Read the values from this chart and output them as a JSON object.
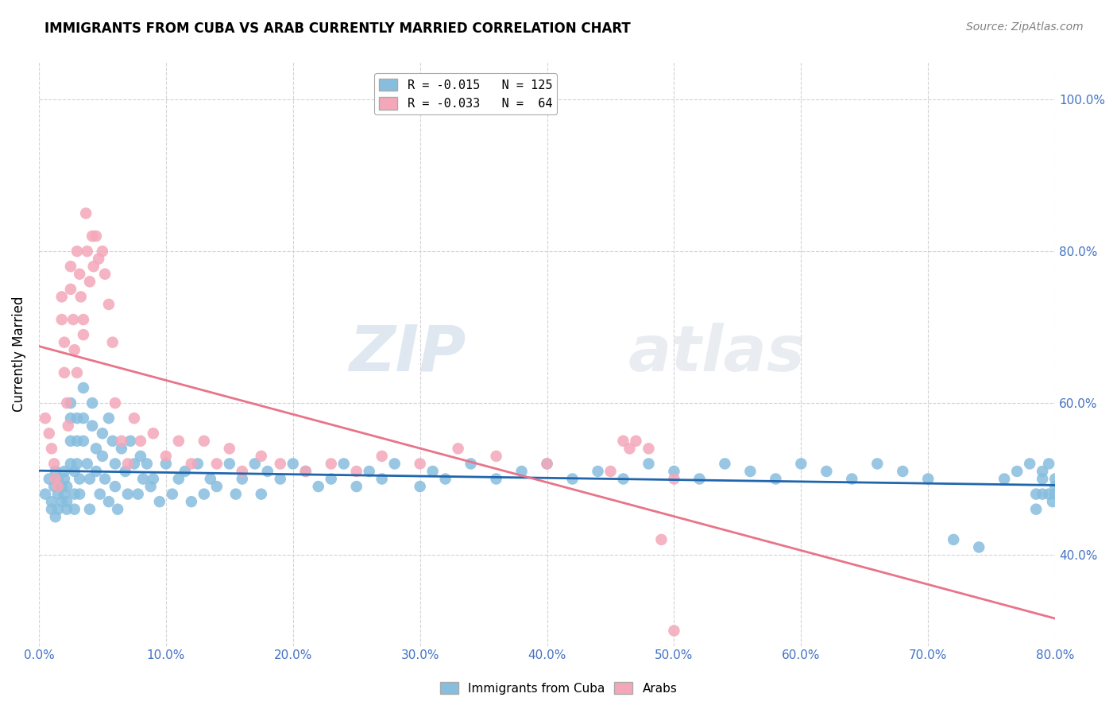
{
  "title": "IMMIGRANTS FROM CUBA VS ARAB CURRENTLY MARRIED CORRELATION CHART",
  "source": "Source: ZipAtlas.com",
  "ylabel": "Currently Married",
  "xlim": [
    0.0,
    0.8
  ],
  "ylim": [
    0.28,
    1.05
  ],
  "legend_entry1": "R = -0.015   N = 125",
  "legend_entry2": "R = -0.033   N =  64",
  "color_cuba": "#87BEDE",
  "color_arab": "#F4A7B9",
  "line_color_cuba": "#2166AC",
  "line_color_arab": "#E8748A",
  "cuba_x": [
    0.005,
    0.008,
    0.01,
    0.01,
    0.012,
    0.013,
    0.013,
    0.015,
    0.015,
    0.015,
    0.018,
    0.018,
    0.02,
    0.02,
    0.02,
    0.022,
    0.022,
    0.022,
    0.025,
    0.025,
    0.025,
    0.025,
    0.028,
    0.028,
    0.028,
    0.03,
    0.03,
    0.03,
    0.032,
    0.032,
    0.035,
    0.035,
    0.035,
    0.038,
    0.04,
    0.04,
    0.042,
    0.042,
    0.045,
    0.045,
    0.048,
    0.05,
    0.05,
    0.052,
    0.055,
    0.055,
    0.058,
    0.06,
    0.06,
    0.062,
    0.065,
    0.068,
    0.07,
    0.072,
    0.075,
    0.078,
    0.08,
    0.082,
    0.085,
    0.088,
    0.09,
    0.095,
    0.1,
    0.105,
    0.11,
    0.115,
    0.12,
    0.125,
    0.13,
    0.135,
    0.14,
    0.15,
    0.155,
    0.16,
    0.17,
    0.175,
    0.18,
    0.19,
    0.2,
    0.21,
    0.22,
    0.23,
    0.24,
    0.25,
    0.26,
    0.27,
    0.28,
    0.3,
    0.31,
    0.32,
    0.34,
    0.36,
    0.38,
    0.4,
    0.42,
    0.44,
    0.46,
    0.48,
    0.5,
    0.52,
    0.54,
    0.56,
    0.58,
    0.6,
    0.62,
    0.64,
    0.66,
    0.68,
    0.7,
    0.72,
    0.74,
    0.76,
    0.77,
    0.78,
    0.785,
    0.785,
    0.79,
    0.79,
    0.79,
    0.795,
    0.795,
    0.798,
    0.8,
    0.8,
    0.8
  ],
  "cuba_y": [
    0.48,
    0.5,
    0.46,
    0.47,
    0.49,
    0.45,
    0.51,
    0.48,
    0.5,
    0.46,
    0.47,
    0.49,
    0.51,
    0.48,
    0.5,
    0.46,
    0.47,
    0.49,
    0.6,
    0.58,
    0.55,
    0.52,
    0.51,
    0.48,
    0.46,
    0.58,
    0.55,
    0.52,
    0.5,
    0.48,
    0.62,
    0.58,
    0.55,
    0.52,
    0.5,
    0.46,
    0.6,
    0.57,
    0.54,
    0.51,
    0.48,
    0.56,
    0.53,
    0.5,
    0.47,
    0.58,
    0.55,
    0.52,
    0.49,
    0.46,
    0.54,
    0.51,
    0.48,
    0.55,
    0.52,
    0.48,
    0.53,
    0.5,
    0.52,
    0.49,
    0.5,
    0.47,
    0.52,
    0.48,
    0.5,
    0.51,
    0.47,
    0.52,
    0.48,
    0.5,
    0.49,
    0.52,
    0.48,
    0.5,
    0.52,
    0.48,
    0.51,
    0.5,
    0.52,
    0.51,
    0.49,
    0.5,
    0.52,
    0.49,
    0.51,
    0.5,
    0.52,
    0.49,
    0.51,
    0.5,
    0.52,
    0.5,
    0.51,
    0.52,
    0.5,
    0.51,
    0.5,
    0.52,
    0.51,
    0.5,
    0.52,
    0.51,
    0.5,
    0.52,
    0.51,
    0.5,
    0.52,
    0.51,
    0.5,
    0.42,
    0.41,
    0.5,
    0.51,
    0.52,
    0.48,
    0.46,
    0.48,
    0.5,
    0.51,
    0.52,
    0.48,
    0.47,
    0.49,
    0.5,
    0.48
  ],
  "arab_x": [
    0.005,
    0.008,
    0.01,
    0.012,
    0.013,
    0.015,
    0.018,
    0.018,
    0.02,
    0.02,
    0.022,
    0.023,
    0.025,
    0.025,
    0.027,
    0.028,
    0.03,
    0.03,
    0.032,
    0.033,
    0.035,
    0.035,
    0.037,
    0.038,
    0.04,
    0.042,
    0.043,
    0.045,
    0.047,
    0.05,
    0.052,
    0.055,
    0.058,
    0.06,
    0.065,
    0.07,
    0.075,
    0.08,
    0.09,
    0.1,
    0.11,
    0.12,
    0.13,
    0.14,
    0.15,
    0.16,
    0.175,
    0.19,
    0.21,
    0.23,
    0.25,
    0.27,
    0.3,
    0.33,
    0.36,
    0.4,
    0.45,
    0.5,
    0.46,
    0.465,
    0.47,
    0.48,
    0.49,
    0.5
  ],
  "arab_y": [
    0.58,
    0.56,
    0.54,
    0.52,
    0.5,
    0.49,
    0.74,
    0.71,
    0.68,
    0.64,
    0.6,
    0.57,
    0.78,
    0.75,
    0.71,
    0.67,
    0.64,
    0.8,
    0.77,
    0.74,
    0.71,
    0.69,
    0.85,
    0.8,
    0.76,
    0.82,
    0.78,
    0.82,
    0.79,
    0.8,
    0.77,
    0.73,
    0.68,
    0.6,
    0.55,
    0.52,
    0.58,
    0.55,
    0.56,
    0.53,
    0.55,
    0.52,
    0.55,
    0.52,
    0.54,
    0.51,
    0.53,
    0.52,
    0.51,
    0.52,
    0.51,
    0.53,
    0.52,
    0.54,
    0.53,
    0.52,
    0.51,
    0.5,
    0.55,
    0.54,
    0.55,
    0.54,
    0.42,
    0.3
  ]
}
